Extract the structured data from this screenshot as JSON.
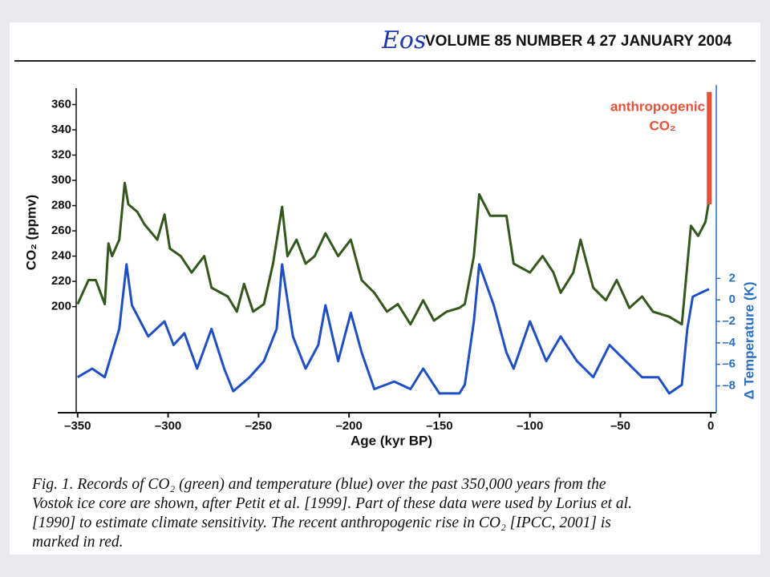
{
  "header": {
    "journal": "Eos",
    "issue": "VOLUME 85  NUMBER 4  27 JANUARY 2004"
  },
  "chart_data": {
    "type": "line",
    "xlabel": "Age (kyr BP)",
    "ylabel": "CO₂ (ppmv)",
    "y2label": "Δ Temperature (K)",
    "annotation": [
      "anthropogenic",
      "CO₂"
    ],
    "xlim": [
      -361,
      3
    ],
    "xticks": [
      {
        "value": -350,
        "label": "–350"
      },
      {
        "value": -300,
        "label": "–300"
      },
      {
        "value": -250,
        "label": "–250"
      },
      {
        "value": -200,
        "label": "–200"
      },
      {
        "value": -150,
        "label": "–150"
      },
      {
        "value": -100,
        "label": "–100"
      },
      {
        "value": -50,
        "label": "–50"
      },
      0
    ],
    "ylim": [
      116,
      373
    ],
    "yticks": [
      200,
      220,
      240,
      260,
      280,
      300,
      320,
      340,
      360
    ],
    "y2lim": [
      -10.5,
      19.7
    ],
    "y2ticks": [
      2,
      0,
      {
        "value": -2,
        "label": "–2"
      },
      {
        "value": -4,
        "label": "–4"
      },
      {
        "value": -6,
        "label": "–6"
      },
      {
        "value": -8,
        "label": "–8"
      }
    ],
    "series": [
      {
        "name": "CO₂",
        "color": "#34581c",
        "x": [
          -350,
          -344,
          -340,
          -335,
          -333,
          -331,
          -327,
          -324,
          -322,
          -317,
          -313,
          -306,
          -302,
          -299,
          -293,
          -287,
          -280,
          -276,
          -267,
          -262,
          -258,
          -253,
          -247,
          -242,
          -237,
          -234,
          -229,
          -224,
          -219,
          -213,
          -206,
          -199,
          -193,
          -186,
          -179,
          -173,
          -166,
          -159,
          -153,
          -146,
          -139,
          -136,
          -131,
          -128,
          -122,
          -113,
          -109,
          -100,
          -93,
          -87,
          -83,
          -76,
          -72,
          -65,
          -58,
          -52,
          -45,
          -38,
          -32,
          -23,
          -16,
          -11,
          -7,
          -3,
          -1
        ],
        "values": [
          202,
          221,
          221,
          202,
          250,
          240,
          253,
          298,
          281,
          275,
          265,
          253,
          273,
          246,
          240,
          227,
          240,
          215,
          208,
          196,
          218,
          196,
          202,
          234,
          279,
          240,
          253,
          234,
          240,
          258,
          240,
          253,
          221,
          211,
          196,
          202,
          186,
          205,
          189,
          196,
          199,
          202,
          240,
          289,
          272,
          272,
          234,
          227,
          240,
          227,
          211,
          227,
          253,
          215,
          205,
          221,
          199,
          208,
          196,
          192,
          186,
          264,
          256,
          267,
          284
        ]
      },
      {
        "name": "Δ Temperature",
        "color": "#1f4fc4",
        "axis": "y2",
        "x": [
          -350,
          -342,
          -335,
          -331,
          -327,
          -323,
          -320,
          -311,
          -302,
          -297,
          -291,
          -284,
          -276,
          -269,
          -264,
          -255,
          -247,
          -240,
          -237,
          -231,
          -224,
          -217,
          -213,
          -206,
          -199,
          -193,
          -186,
          -175,
          -166,
          -159,
          -150,
          -139,
          -136,
          -131,
          -128,
          -120,
          -113,
          -109,
          -100,
          -91,
          -83,
          -74,
          -65,
          -56,
          -47,
          -38,
          -29,
          -23,
          -16,
          -13,
          -10,
          -5,
          -1
        ],
        "values": [
          -7.2,
          -6.4,
          -7.2,
          -4.9,
          -2.7,
          3.3,
          -0.5,
          -3.4,
          -2.0,
          -4.2,
          -3.1,
          -6.4,
          -2.7,
          -6.4,
          -8.5,
          -7.2,
          -5.7,
          -2.7,
          3.3,
          -3.4,
          -6.4,
          -4.2,
          -0.5,
          -5.7,
          -1.2,
          -4.9,
          -8.3,
          -7.6,
          -8.3,
          -6.4,
          -8.7,
          -8.7,
          -7.9,
          -2.0,
          3.3,
          -0.5,
          -4.9,
          -6.4,
          -2.0,
          -5.7,
          -3.4,
          -5.7,
          -7.2,
          -4.2,
          -5.7,
          -7.2,
          -7.2,
          -8.7,
          -7.9,
          -2.7,
          0.3,
          0.7,
          1.0
        ]
      }
    ],
    "anthropogenic": {
      "x": 0,
      "values": [
        281,
        370
      ],
      "color": "#e8503a"
    }
  },
  "caption": [
    "Fig. 1. Records of CO₂ (green) and temperature (blue) over the past 350,000 years from the",
    "Vostok ice core are shown, after Petit et al. [1999]. Part of these data were used by Lorius et al.",
    "[1990] to estimate climate sensitivity. The recent anthropogenic rise in CO₂ [IPCC, 2001] is",
    "marked in red."
  ]
}
